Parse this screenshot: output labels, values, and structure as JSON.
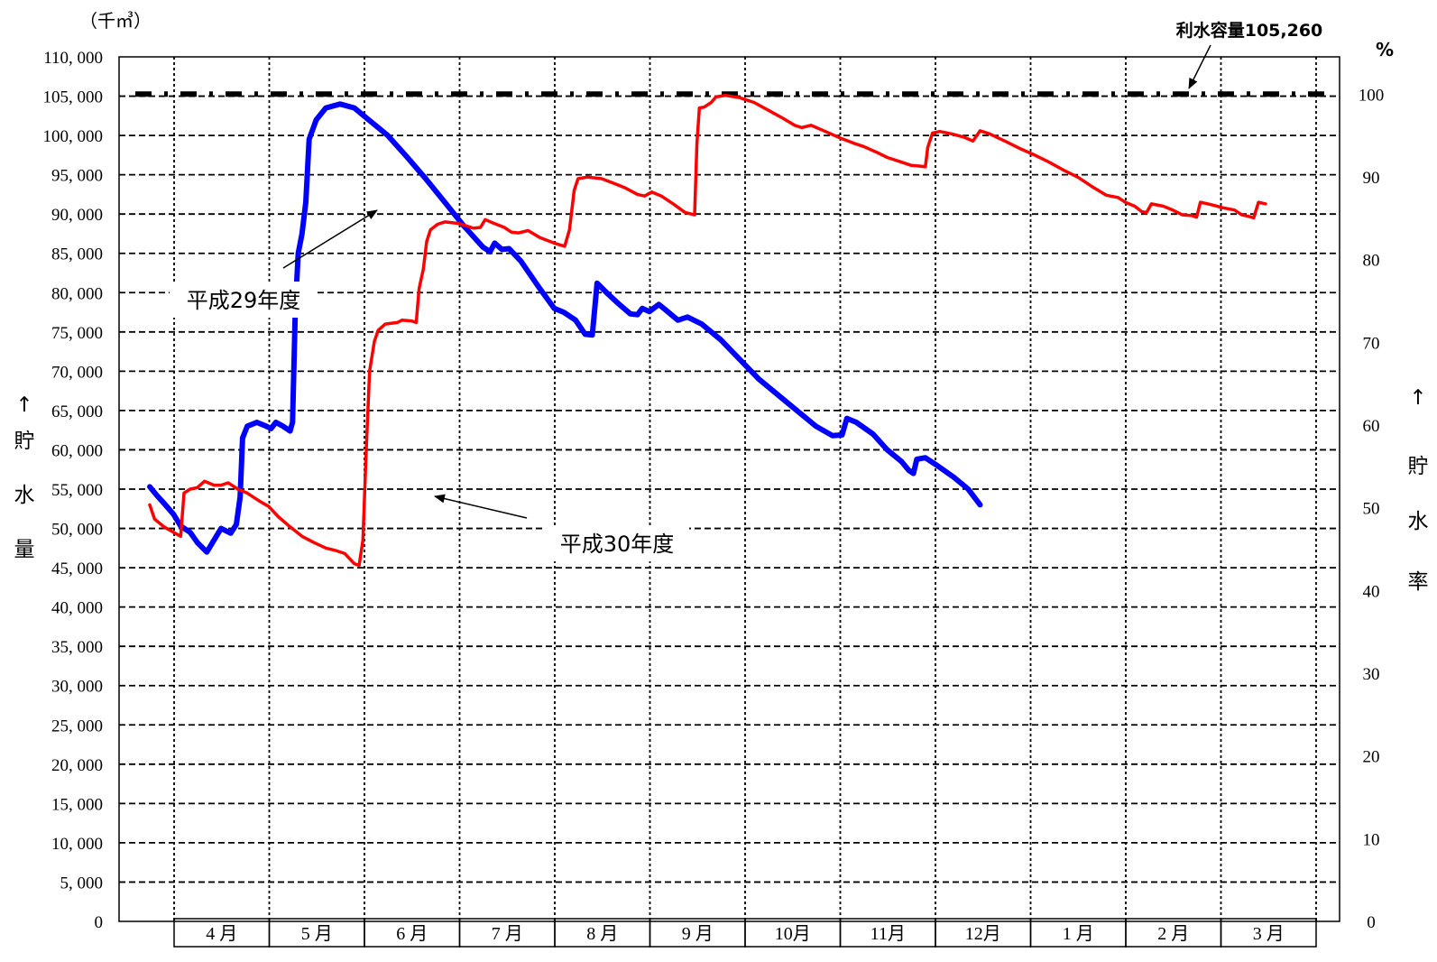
{
  "chart_data": {
    "type": "line",
    "y_unit_left": "（千㎥）",
    "y_unit_right": "%",
    "y_ticks_left": [
      "0",
      "5, 000",
      "10, 000",
      "15, 000",
      "20, 000",
      "25, 000",
      "30, 000",
      "35, 000",
      "40, 000",
      "45, 000",
      "50, 000",
      "55, 000",
      "60, 000",
      "65, 000",
      "70, 000",
      "75, 000",
      "80, 000",
      "85, 000",
      "90, 000",
      "95, 000",
      "100, 000",
      "105, 000",
      "110, 000"
    ],
    "y_ticks_right": [
      "0",
      "10",
      "20",
      "30",
      "40",
      "50",
      "60",
      "70",
      "80",
      "90",
      "100"
    ],
    "ylim": [
      0,
      110000
    ],
    "ylim_right": [
      0,
      104.5
    ],
    "ylabel_left": [
      "↑",
      "貯",
      "水",
      "量"
    ],
    "ylabel_right": [
      "↑",
      "貯",
      "水",
      "率"
    ],
    "categories": [
      "4 月",
      "5 月",
      "6 月",
      "7 月",
      "8 月",
      "9 月",
      "10月",
      "11月",
      "12月",
      "1 月",
      "2 月",
      "3 月"
    ],
    "reference_line": {
      "label": "利水容量105,260",
      "value": 105260,
      "color": "#000000"
    },
    "series": [
      {
        "name": "平成29年度",
        "color": "#0000ff",
        "points": [
          [
            0.0,
            55300
          ],
          [
            0.15,
            54200
          ],
          [
            0.3,
            53200
          ],
          [
            0.5,
            51800
          ],
          [
            0.65,
            50300
          ],
          [
            0.85,
            49500
          ],
          [
            1.0,
            48200
          ],
          [
            1.2,
            47000
          ],
          [
            1.35,
            48500
          ],
          [
            1.5,
            50000
          ],
          [
            1.7,
            49400
          ],
          [
            1.82,
            50500
          ],
          [
            1.9,
            54000
          ],
          [
            1.95,
            61500
          ],
          [
            2.05,
            63000
          ],
          [
            2.25,
            63500
          ],
          [
            2.45,
            63000
          ],
          [
            2.55,
            62700
          ],
          [
            2.65,
            63500
          ],
          [
            2.8,
            63000
          ],
          [
            2.95,
            62400
          ],
          [
            3.0,
            63500
          ],
          [
            3.06,
            78000
          ],
          [
            3.12,
            85000
          ],
          [
            3.2,
            87500
          ],
          [
            3.28,
            91500
          ],
          [
            3.35,
            99500
          ],
          [
            3.5,
            102000
          ],
          [
            3.7,
            103500
          ],
          [
            4.0,
            104000
          ],
          [
            4.3,
            103500
          ],
          [
            4.6,
            102000
          ],
          [
            5.0,
            100000
          ],
          [
            5.4,
            97300
          ],
          [
            5.8,
            94500
          ],
          [
            6.2,
            91500
          ],
          [
            6.6,
            88500
          ],
          [
            7.0,
            85800
          ],
          [
            7.15,
            85200
          ],
          [
            7.25,
            86300
          ],
          [
            7.4,
            85500
          ],
          [
            7.55,
            85600
          ],
          [
            7.8,
            84000
          ],
          [
            8.2,
            80500
          ],
          [
            8.5,
            78000
          ],
          [
            8.7,
            77500
          ],
          [
            8.95,
            76500
          ],
          [
            9.15,
            74700
          ],
          [
            9.3,
            74600
          ],
          [
            9.4,
            81200
          ],
          [
            9.6,
            80000
          ],
          [
            9.85,
            78600
          ],
          [
            10.1,
            77300
          ],
          [
            10.25,
            77200
          ],
          [
            10.35,
            78000
          ],
          [
            10.5,
            77600
          ],
          [
            10.7,
            78500
          ],
          [
            10.9,
            77500
          ],
          [
            11.1,
            76500
          ],
          [
            11.3,
            76900
          ],
          [
            11.6,
            76000
          ],
          [
            12.0,
            74000
          ],
          [
            12.4,
            71500
          ],
          [
            12.8,
            69000
          ],
          [
            13.2,
            67000
          ],
          [
            13.6,
            65000
          ],
          [
            14.0,
            63000
          ],
          [
            14.35,
            61800
          ],
          [
            14.55,
            61900
          ],
          [
            14.65,
            64000
          ],
          [
            14.85,
            63500
          ],
          [
            15.2,
            62000
          ],
          [
            15.5,
            60000
          ],
          [
            15.8,
            58500
          ],
          [
            15.95,
            57400
          ],
          [
            16.05,
            57000
          ],
          [
            16.12,
            58800
          ],
          [
            16.3,
            59000
          ],
          [
            16.55,
            58000
          ],
          [
            16.9,
            56500
          ],
          [
            17.2,
            55000
          ],
          [
            17.45,
            53000
          ]
        ]
      },
      {
        "name": "平成30年度",
        "color": "#ff0000",
        "points": [
          [
            0.0,
            53000
          ],
          [
            0.1,
            51200
          ],
          [
            0.3,
            50200
          ],
          [
            0.5,
            49500
          ],
          [
            0.65,
            49000
          ],
          [
            0.72,
            54500
          ],
          [
            0.85,
            55000
          ],
          [
            1.0,
            55200
          ],
          [
            1.15,
            56000
          ],
          [
            1.35,
            55500
          ],
          [
            1.5,
            55500
          ],
          [
            1.65,
            55800
          ],
          [
            1.85,
            55000
          ],
          [
            2.05,
            54500
          ],
          [
            2.3,
            53500
          ],
          [
            2.5,
            52800
          ],
          [
            2.7,
            51500
          ],
          [
            2.95,
            50200
          ],
          [
            3.2,
            49000
          ],
          [
            3.45,
            48200
          ],
          [
            3.7,
            47500
          ],
          [
            3.9,
            47200
          ],
          [
            4.1,
            46800
          ],
          [
            4.3,
            45500
          ],
          [
            4.4,
            45300
          ],
          [
            4.48,
            48500
          ],
          [
            4.55,
            60000
          ],
          [
            4.62,
            70000
          ],
          [
            4.72,
            73800
          ],
          [
            4.8,
            75200
          ],
          [
            4.95,
            76000
          ],
          [
            5.2,
            76200
          ],
          [
            5.3,
            76500
          ],
          [
            5.5,
            76400
          ],
          [
            5.6,
            76200
          ],
          [
            5.66,
            80500
          ],
          [
            5.75,
            83000
          ],
          [
            5.82,
            86500
          ],
          [
            5.9,
            88000
          ],
          [
            6.05,
            88700
          ],
          [
            6.2,
            89000
          ],
          [
            6.5,
            88800
          ],
          [
            6.8,
            88200
          ],
          [
            6.95,
            88300
          ],
          [
            7.05,
            89300
          ],
          [
            7.2,
            88900
          ],
          [
            7.45,
            88300
          ],
          [
            7.6,
            87700
          ],
          [
            7.75,
            87600
          ],
          [
            7.95,
            87900
          ],
          [
            8.2,
            87000
          ],
          [
            8.5,
            86300
          ],
          [
            8.72,
            85900
          ],
          [
            8.82,
            88000
          ],
          [
            8.92,
            93000
          ],
          [
            9.0,
            94500
          ],
          [
            9.2,
            94700
          ],
          [
            9.5,
            94500
          ],
          [
            9.8,
            93800
          ],
          [
            10.0,
            93300
          ],
          [
            10.25,
            92500
          ],
          [
            10.4,
            92300
          ],
          [
            10.55,
            92800
          ],
          [
            10.75,
            92300
          ],
          [
            11.0,
            91300
          ],
          [
            11.25,
            90200
          ],
          [
            11.45,
            89900
          ],
          [
            11.5,
            99000
          ],
          [
            11.55,
            103500
          ],
          [
            11.65,
            103600
          ],
          [
            11.8,
            104200
          ],
          [
            11.9,
            104900
          ],
          [
            12.1,
            105100
          ],
          [
            12.4,
            104800
          ],
          [
            12.7,
            104200
          ],
          [
            13.0,
            103200
          ],
          [
            13.3,
            102200
          ],
          [
            13.55,
            101300
          ],
          [
            13.7,
            101000
          ],
          [
            13.9,
            101300
          ],
          [
            14.2,
            100500
          ],
          [
            14.5,
            99700
          ],
          [
            14.8,
            99000
          ],
          [
            15.0,
            98600
          ],
          [
            15.3,
            97800
          ],
          [
            15.5,
            97200
          ],
          [
            15.8,
            96600
          ],
          [
            16.0,
            96200
          ],
          [
            16.2,
            96100
          ],
          [
            16.3,
            96000
          ],
          [
            16.35,
            98500
          ],
          [
            16.45,
            100300
          ],
          [
            16.6,
            100500
          ],
          [
            16.85,
            100200
          ],
          [
            17.1,
            99800
          ],
          [
            17.3,
            99300
          ],
          [
            17.45,
            100600
          ],
          [
            17.65,
            100200
          ],
          [
            18.0,
            99200
          ],
          [
            18.3,
            98300
          ],
          [
            18.6,
            97500
          ],
          [
            18.9,
            96600
          ],
          [
            19.2,
            95600
          ],
          [
            19.5,
            94700
          ],
          [
            19.8,
            93500
          ],
          [
            20.1,
            92400
          ],
          [
            20.35,
            92100
          ],
          [
            20.5,
            91500
          ],
          [
            20.7,
            91000
          ],
          [
            20.85,
            90300
          ],
          [
            20.95,
            90200
          ],
          [
            21.05,
            91300
          ],
          [
            21.3,
            91000
          ],
          [
            21.5,
            90500
          ],
          [
            21.7,
            89900
          ],
          [
            21.9,
            89800
          ],
          [
            22.0,
            89600
          ],
          [
            22.08,
            91500
          ],
          [
            22.3,
            91200
          ],
          [
            22.55,
            90800
          ],
          [
            22.8,
            90500
          ],
          [
            22.95,
            89900
          ],
          [
            23.1,
            89700
          ],
          [
            23.2,
            89500
          ],
          [
            23.3,
            91500
          ],
          [
            23.45,
            91300
          ]
        ]
      }
    ],
    "annotations": [
      {
        "text": "平成29年度",
        "target": "平成29年度"
      },
      {
        "text": "平成30年度",
        "target": "平成30年度"
      }
    ],
    "grid": true,
    "legend": "none"
  }
}
